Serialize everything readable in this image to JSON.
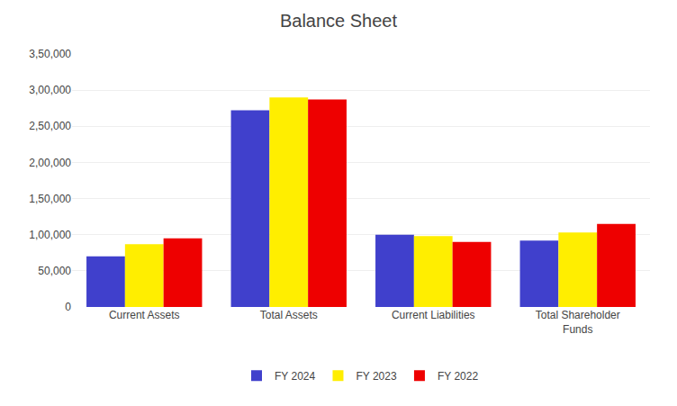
{
  "chart_data": {
    "type": "bar",
    "title": "Balance Sheet",
    "categories": [
      "Current Assets",
      "Total Assets",
      "Current Liabilities",
      "Total Shareholder\nFunds"
    ],
    "series": [
      {
        "name": "FY 2024",
        "color": "#4040cc",
        "values": [
          70000,
          272000,
          100000,
          92000
        ]
      },
      {
        "name": "FY 2023",
        "color": "#ffee00",
        "values": [
          87000,
          290000,
          98000,
          103000
        ]
      },
      {
        "name": "FY 2022",
        "color": "#ee0000",
        "values": [
          95000,
          287000,
          90000,
          115000
        ]
      }
    ],
    "ylim": [
      0,
      350000
    ],
    "yticks": [
      0,
      {
        "value": 50000,
        "label": "50,000"
      },
      {
        "value": 100000,
        "label": "1,00,000"
      },
      {
        "value": 150000,
        "label": "1,50,000"
      },
      {
        "value": 200000,
        "label": "2,00,000"
      },
      {
        "value": 250000,
        "label": "2,50,000"
      },
      {
        "value": 300000,
        "label": "3,00,000"
      },
      {
        "value": 350000,
        "label": "3,50,000"
      }
    ],
    "grid": true,
    "legend": "bottom"
  }
}
